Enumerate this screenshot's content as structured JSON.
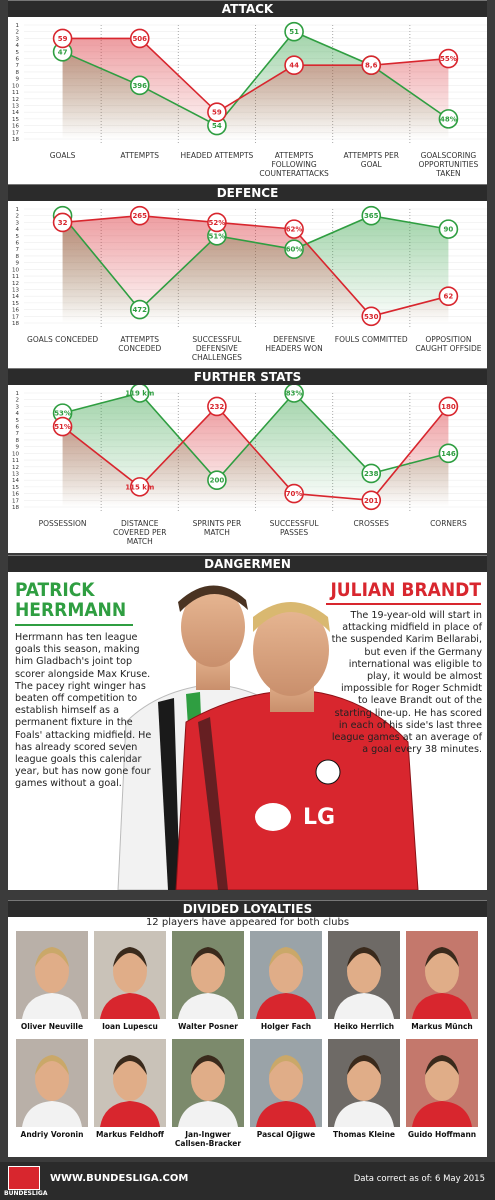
{
  "sections": [
    {
      "title": "ATTACK",
      "inverted": true,
      "ylim": [
        1,
        18
      ],
      "yticks": [
        1,
        2,
        3,
        4,
        5,
        6,
        7,
        8,
        9,
        10,
        11,
        12,
        13,
        14,
        15,
        16,
        17,
        18
      ],
      "categories": [
        "GOALS",
        "ATTEMPTS",
        "HEADED ATTEMPTS",
        "ATTEMPTS FOLLOWING COUNTERATTACKS",
        "ATTEMPTS PER GOAL",
        "GOALSCORING OPPORTUNITIES TAKEN"
      ],
      "series": [
        {
          "color": "#2f9e41",
          "ranks": [
            5,
            10,
            16,
            2,
            7,
            15
          ],
          "labels": [
            "47",
            "396",
            "54",
            "51",
            "8,4",
            "48%"
          ]
        },
        {
          "color": "#d8262e",
          "ranks": [
            3,
            3,
            14,
            7,
            7,
            6
          ],
          "labels": [
            "59",
            "506",
            "59",
            "44",
            "8,6",
            "55%"
          ]
        }
      ]
    },
    {
      "title": "DEFENCE",
      "inverted": true,
      "ylim": [
        1,
        18
      ],
      "yticks": [
        1,
        2,
        3,
        4,
        5,
        6,
        7,
        8,
        9,
        10,
        11,
        12,
        13,
        14,
        15,
        16,
        17,
        18
      ],
      "categories": [
        "GOALS CONCEDED",
        "ATTEMPTS CONCEDED",
        "SUCCESSFUL DEFENSIVE CHALLENGES",
        "DEFENSIVE HEADERS WON",
        "FOULS COMMITTED",
        "OPPOSITION CAUGHT OFFSIDE"
      ],
      "series": [
        {
          "color": "#2f9e41",
          "ranks": [
            2,
            16,
            5,
            7,
            2,
            4
          ],
          "labels": [
            "23",
            "472",
            "51%",
            "60%",
            "365",
            "90"
          ]
        },
        {
          "color": "#d8262e",
          "ranks": [
            3,
            2,
            3,
            4,
            17,
            14
          ],
          "labels": [
            "32",
            "265",
            "52%",
            "62%",
            "530",
            "62"
          ]
        }
      ]
    },
    {
      "title": "FURTHER STATS",
      "inverted": true,
      "ylim": [
        1,
        18
      ],
      "yticks": [
        1,
        2,
        3,
        4,
        5,
        6,
        7,
        8,
        9,
        10,
        11,
        12,
        13,
        14,
        15,
        16,
        17,
        18
      ],
      "categories": [
        "POSSESSION",
        "DISTANCE COVERED PER MATCH",
        "SPRINTS PER MATCH",
        "SUCCESSFUL PASSES",
        "CROSSES",
        "CORNERS"
      ],
      "series": [
        {
          "color": "#2f9e41",
          "ranks": [
            4,
            1,
            14,
            1,
            13,
            10
          ],
          "labels": [
            "53%",
            "119 km",
            "200",
            "83%",
            "238",
            "146"
          ]
        },
        {
          "color": "#d8262e",
          "ranks": [
            6,
            15,
            3,
            16,
            17,
            3
          ],
          "labels": [
            "51%",
            "115 km",
            "232",
            "70%",
            "201",
            "180"
          ]
        }
      ]
    }
  ],
  "dangermen": {
    "title": "DANGERMEN",
    "players": [
      {
        "name": "PATRICK HERRMANN",
        "bio": "Herrmann has ten league goals this season, making him Gladbach's joint top scorer alongside Max Kruse. The pacey right winger has beaten off competition to establish himself as a permanent fixture in the Foals' attacking midfield. He has already scored seven league goals this calendar year, but has now gone four games without a goal."
      },
      {
        "name": "JULIAN BRANDT",
        "bio": "The 19-year-old will start in attacking midfield in place of the suspended Karim Bellarabi, but even if the Germany international was eligible to play, it would be almost impossible for Roger Schmidt to leave Brandt out of the starting line-up. He has scored in each of his side's last three league games at an average of a goal every 38 minutes."
      }
    ]
  },
  "divided_loyalties": {
    "title": "DIVIDED LOYALTIES",
    "subtitle": "12 players have appeared for both clubs",
    "players": [
      "Oliver Neuville",
      "Ioan Lupescu",
      "Walter Posner",
      "Holger Fach",
      "Heiko Herrlich",
      "Markus Münch",
      "Andriy Voronin",
      "Markus Feldhoff",
      "Jan-Ingwer Callsen-Bracker",
      "Pascal Ojigwe",
      "Thomas Kleine",
      "Guido Hoffmann"
    ]
  },
  "footer": {
    "logo": "BUNDESLIGA",
    "url": "WWW.BUNDESLIGA.COM",
    "note": "Data correct as of: 6 May 2015"
  }
}
